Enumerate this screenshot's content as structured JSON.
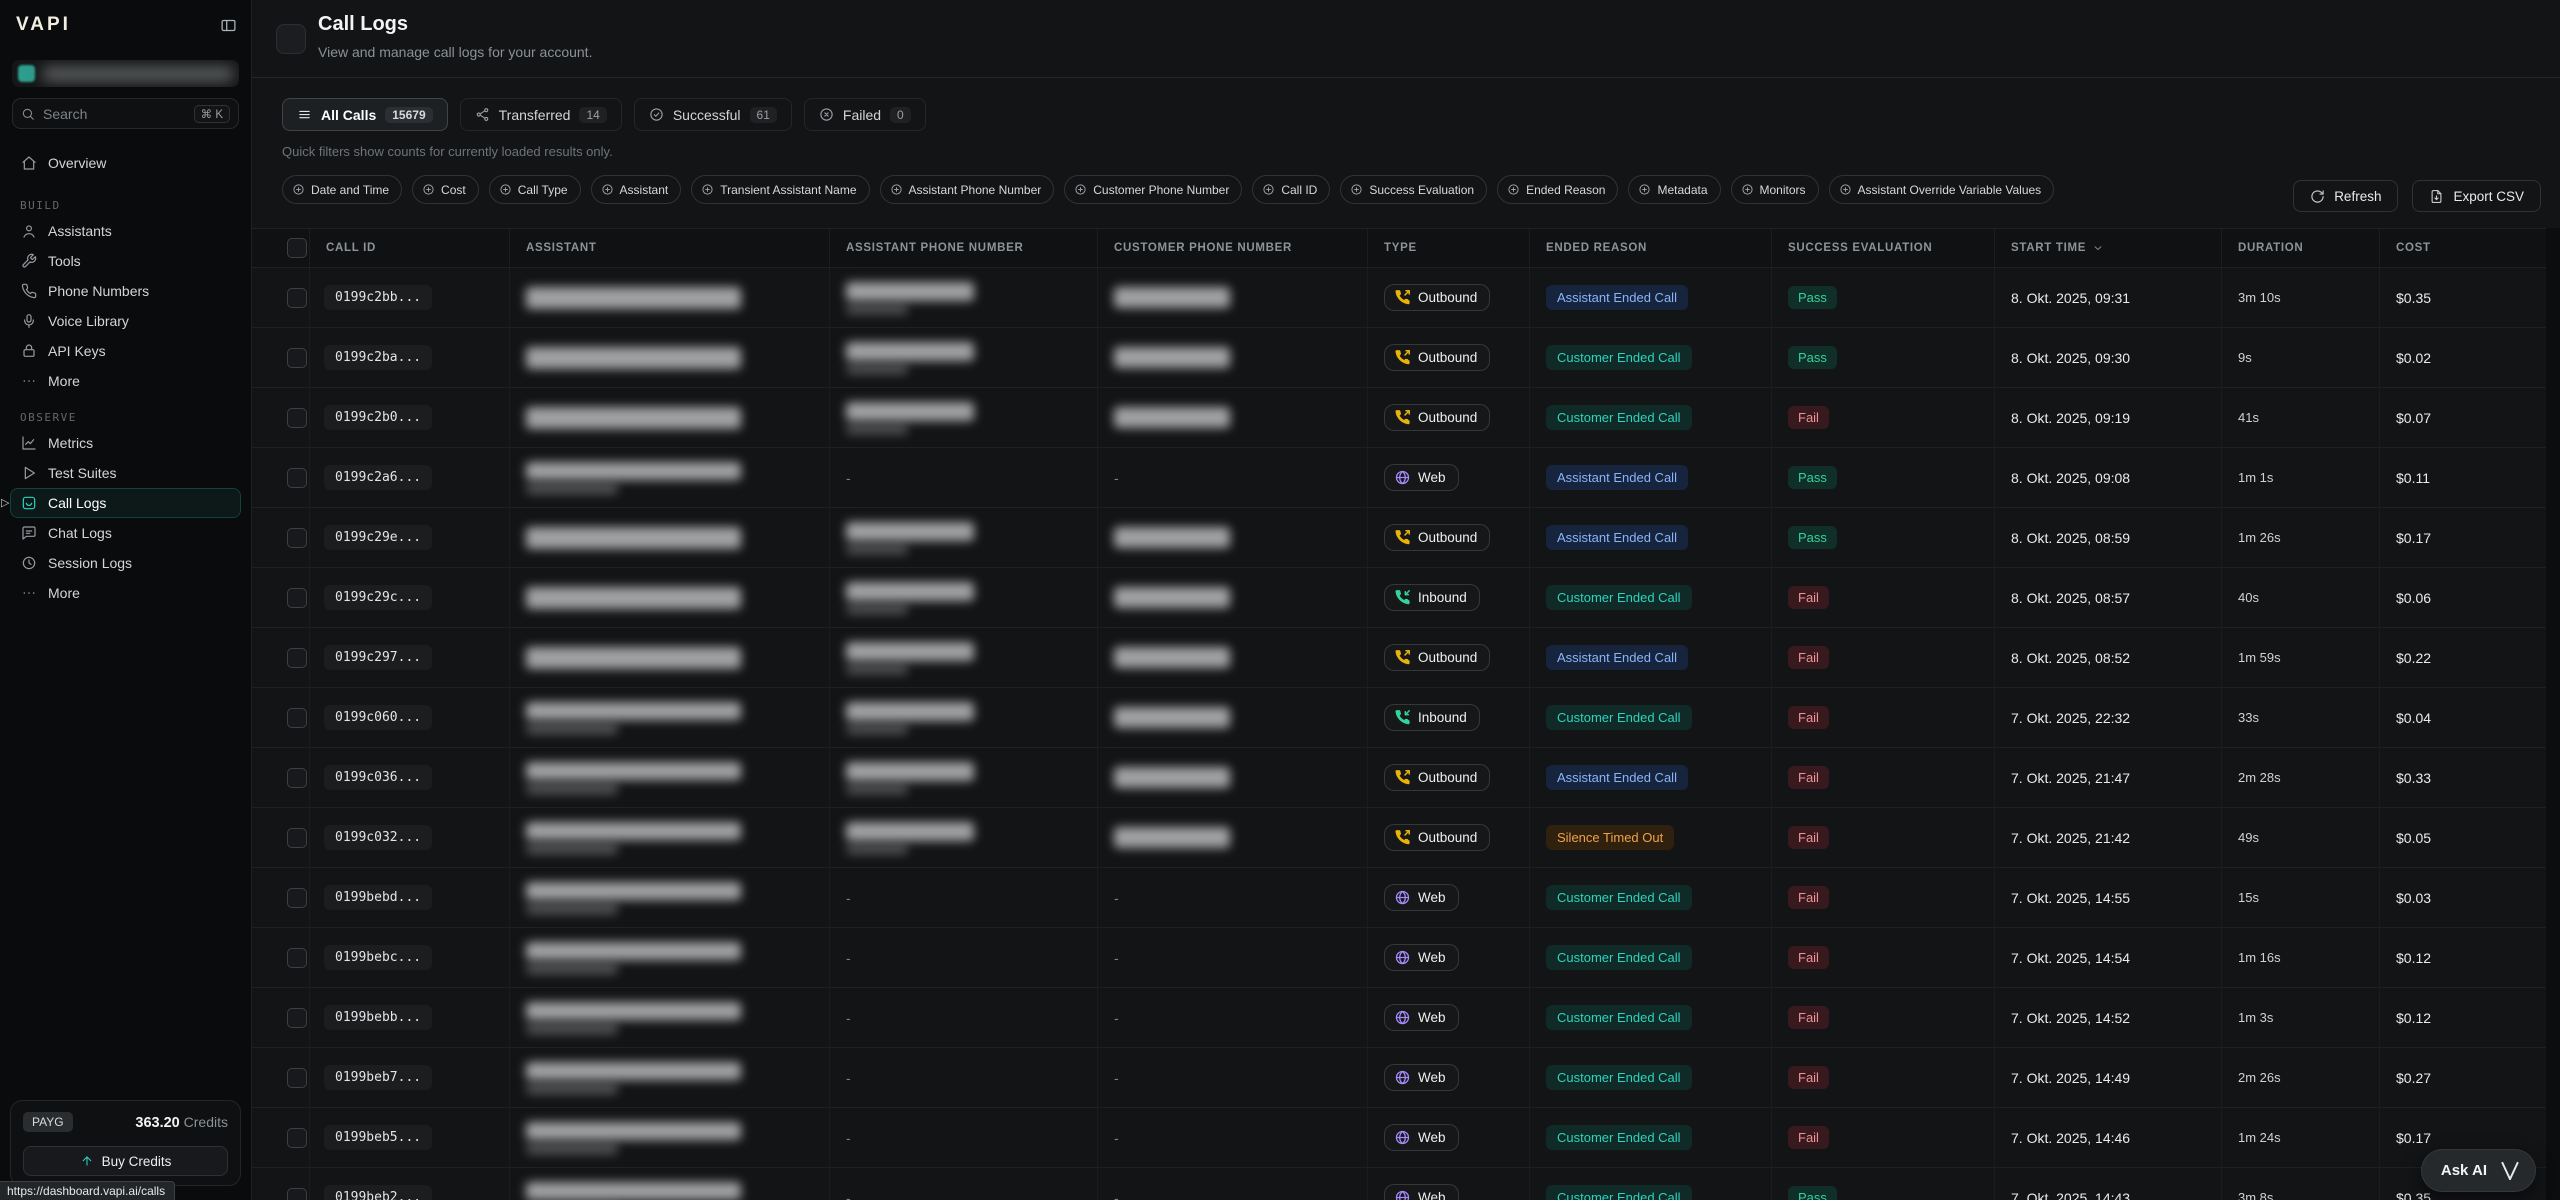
{
  "window": {
    "url_tooltip": "https://dashboard.vapi.ai/calls"
  },
  "sidebar": {
    "logo": "VAPI",
    "search": {
      "placeholder": "Search",
      "shortcut": "⌘ K"
    },
    "nav_top": [
      {
        "label": "Overview",
        "icon": "home-icon"
      }
    ],
    "sections": [
      {
        "label": "BUILD",
        "items": [
          {
            "label": "Assistants",
            "icon": "user-icon"
          },
          {
            "label": "Tools",
            "icon": "wrench-icon"
          },
          {
            "label": "Phone Numbers",
            "icon": "phone-icon"
          },
          {
            "label": "Voice Library",
            "icon": "mic-icon"
          },
          {
            "label": "API Keys",
            "icon": "lock-icon"
          },
          {
            "label": "More",
            "icon": "ellipsis-icon"
          }
        ]
      },
      {
        "label": "OBSERVE",
        "items": [
          {
            "label": "Metrics",
            "icon": "chart-icon"
          },
          {
            "label": "Test Suites",
            "icon": "play-icon"
          },
          {
            "label": "Call Logs",
            "icon": "inbox-icon",
            "active": true
          },
          {
            "label": "Chat Logs",
            "icon": "chat-icon"
          },
          {
            "label": "Session Logs",
            "icon": "history-icon"
          },
          {
            "label": "More",
            "icon": "ellipsis-icon"
          }
        ]
      }
    ],
    "credits": {
      "plan": "PAYG",
      "amount": "363.20",
      "unit": "Credits",
      "buy_label": "Buy Credits"
    }
  },
  "header": {
    "title": "Call Logs",
    "subtitle": "View and manage call logs for your account."
  },
  "filters": {
    "tabs": [
      {
        "label": "All Calls",
        "count": "15679",
        "icon": "list-icon",
        "active": true
      },
      {
        "label": "Transferred",
        "count": "14",
        "icon": "share-icon",
        "active": false
      },
      {
        "label": "Successful",
        "count": "61",
        "icon": "check-circle-icon",
        "active": false
      },
      {
        "label": "Failed",
        "count": "0",
        "icon": "x-circle-icon",
        "active": false
      }
    ],
    "note": "Quick filters show counts for currently loaded results only.",
    "chips": [
      "Date and Time",
      "Cost",
      "Call Type",
      "Assistant",
      "Transient Assistant Name",
      "Assistant Phone Number",
      "Customer Phone Number",
      "Call ID",
      "Success Evaluation",
      "Ended Reason",
      "Metadata",
      "Monitors",
      "Assistant Override Variable Values"
    ],
    "refresh_label": "Refresh",
    "export_label": "Export CSV"
  },
  "table": {
    "columns": [
      "",
      "CALL ID",
      "ASSISTANT",
      "ASSISTANT PHONE NUMBER",
      "CUSTOMER PHONE NUMBER",
      "TYPE",
      "ENDED REASON",
      "SUCCESS EVALUATION",
      "START TIME",
      "DURATION",
      "COST"
    ],
    "sort_column": "START TIME",
    "rows": [
      {
        "call_id": "0199c2bb...",
        "assistant_redacted": true,
        "assistant_two_line": false,
        "assistant_phone": "redacted",
        "customer_phone": "redacted",
        "type": "Outbound",
        "ended_reason": "Assistant Ended Call",
        "evaluation": "Pass",
        "start_time": "8. Okt. 2025, 09:31",
        "duration": "3m 10s",
        "cost": "$0.35"
      },
      {
        "call_id": "0199c2ba...",
        "assistant_redacted": true,
        "assistant_two_line": false,
        "assistant_phone": "redacted",
        "customer_phone": "redacted",
        "type": "Outbound",
        "ended_reason": "Customer Ended Call",
        "evaluation": "Pass",
        "start_time": "8. Okt. 2025, 09:30",
        "duration": "9s",
        "cost": "$0.02"
      },
      {
        "call_id": "0199c2b0...",
        "assistant_redacted": true,
        "assistant_two_line": false,
        "assistant_phone": "redacted",
        "customer_phone": "redacted",
        "type": "Outbound",
        "ended_reason": "Customer Ended Call",
        "evaluation": "Fail",
        "start_time": "8. Okt. 2025, 09:19",
        "duration": "41s",
        "cost": "$0.07"
      },
      {
        "call_id": "0199c2a6...",
        "assistant_redacted": true,
        "assistant_two_line": true,
        "assistant_phone": "-",
        "customer_phone": "-",
        "type": "Web",
        "ended_reason": "Assistant Ended Call",
        "evaluation": "Pass",
        "start_time": "8. Okt. 2025, 09:08",
        "duration": "1m 1s",
        "cost": "$0.11"
      },
      {
        "call_id": "0199c29e...",
        "assistant_redacted": true,
        "assistant_two_line": false,
        "assistant_phone": "redacted",
        "customer_phone": "redacted",
        "type": "Outbound",
        "ended_reason": "Assistant Ended Call",
        "evaluation": "Pass",
        "start_time": "8. Okt. 2025, 08:59",
        "duration": "1m 26s",
        "cost": "$0.17"
      },
      {
        "call_id": "0199c29c...",
        "assistant_redacted": true,
        "assistant_two_line": false,
        "assistant_phone": "redacted",
        "customer_phone": "redacted",
        "type": "Inbound",
        "ended_reason": "Customer Ended Call",
        "evaluation": "Fail",
        "start_time": "8. Okt. 2025, 08:57",
        "duration": "40s",
        "cost": "$0.06"
      },
      {
        "call_id": "0199c297...",
        "assistant_redacted": true,
        "assistant_two_line": false,
        "assistant_phone": "redacted",
        "customer_phone": "redacted",
        "type": "Outbound",
        "ended_reason": "Assistant Ended Call",
        "evaluation": "Fail",
        "start_time": "8. Okt. 2025, 08:52",
        "duration": "1m 59s",
        "cost": "$0.22"
      },
      {
        "call_id": "0199c060...",
        "assistant_redacted": true,
        "assistant_two_line": true,
        "assistant_phone": "redacted",
        "customer_phone": "redacted",
        "type": "Inbound",
        "ended_reason": "Customer Ended Call",
        "evaluation": "Fail",
        "start_time": "7. Okt. 2025, 22:32",
        "duration": "33s",
        "cost": "$0.04"
      },
      {
        "call_id": "0199c036...",
        "assistant_redacted": true,
        "assistant_two_line": true,
        "assistant_phone": "redacted",
        "customer_phone": "redacted",
        "type": "Outbound",
        "ended_reason": "Assistant Ended Call",
        "evaluation": "Fail",
        "start_time": "7. Okt. 2025, 21:47",
        "duration": "2m 28s",
        "cost": "$0.33"
      },
      {
        "call_id": "0199c032...",
        "assistant_redacted": true,
        "assistant_two_line": true,
        "assistant_phone": "redacted",
        "customer_phone": "redacted",
        "type": "Outbound",
        "ended_reason": "Silence Timed Out",
        "evaluation": "Fail",
        "start_time": "7. Okt. 2025, 21:42",
        "duration": "49s",
        "cost": "$0.05"
      },
      {
        "call_id": "0199bebd...",
        "assistant_redacted": true,
        "assistant_two_line": true,
        "assistant_phone": "-",
        "customer_phone": "-",
        "type": "Web",
        "ended_reason": "Customer Ended Call",
        "evaluation": "Fail",
        "start_time": "7. Okt. 2025, 14:55",
        "duration": "15s",
        "cost": "$0.03"
      },
      {
        "call_id": "0199bebc...",
        "assistant_redacted": true,
        "assistant_two_line": true,
        "assistant_phone": "-",
        "customer_phone": "-",
        "type": "Web",
        "ended_reason": "Customer Ended Call",
        "evaluation": "Fail",
        "start_time": "7. Okt. 2025, 14:54",
        "duration": "1m 16s",
        "cost": "$0.12"
      },
      {
        "call_id": "0199bebb...",
        "assistant_redacted": true,
        "assistant_two_line": true,
        "assistant_phone": "-",
        "customer_phone": "-",
        "type": "Web",
        "ended_reason": "Customer Ended Call",
        "evaluation": "Fail",
        "start_time": "7. Okt. 2025, 14:52",
        "duration": "1m 3s",
        "cost": "$0.12"
      },
      {
        "call_id": "0199beb7...",
        "assistant_redacted": true,
        "assistant_two_line": true,
        "assistant_phone": "-",
        "customer_phone": "-",
        "type": "Web",
        "ended_reason": "Customer Ended Call",
        "evaluation": "Fail",
        "start_time": "7. Okt. 2025, 14:49",
        "duration": "2m 26s",
        "cost": "$0.27"
      },
      {
        "call_id": "0199beb5...",
        "assistant_redacted": true,
        "assistant_two_line": true,
        "assistant_phone": "-",
        "customer_phone": "-",
        "type": "Web",
        "ended_reason": "Customer Ended Call",
        "evaluation": "Fail",
        "start_time": "7. Okt. 2025, 14:46",
        "duration": "1m 24s",
        "cost": "$0.17"
      },
      {
        "call_id": "0199beb2...",
        "assistant_redacted": true,
        "assistant_two_line": true,
        "assistant_phone": "-",
        "customer_phone": "-",
        "type": "Web",
        "ended_reason": "Customer Ended Call",
        "evaluation": "Pass",
        "start_time": "7. Okt. 2025, 14:43",
        "duration": "3m 8s",
        "cost": "$0.35"
      }
    ]
  },
  "ask_ai": {
    "label": "Ask AI"
  },
  "colors": {
    "accent": "#2dd4bf",
    "outbound": "#eab308",
    "inbound": "#34d399",
    "web": "#a78bfa",
    "pass": "#34d399",
    "fail": "#f0929a",
    "reason_assistant": "#8ab4f8",
    "reason_customer": "#2dd4bf",
    "reason_silence": "#f0a24b"
  }
}
